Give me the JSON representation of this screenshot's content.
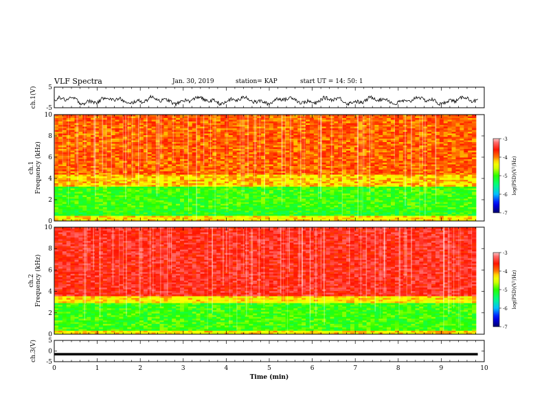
{
  "header": {
    "title": "VLF Spectra",
    "date": "Jan. 30, 2019",
    "station": "station= KAP",
    "start": "start  UT =   14: 50: 1"
  },
  "colors": {
    "spectrogram_scale": [
      "#000080",
      "#0000ff",
      "#00c8ff",
      "#00ff80",
      "#00ff00",
      "#c8ff00",
      "#ffff00",
      "#ff8000",
      "#ff0000",
      "#ff8080"
    ],
    "trace": "#000000"
  },
  "chart_data": [
    {
      "type": "line",
      "panel": "ch1-waveform",
      "ylabel": "ch.1(V)",
      "ylim": [
        -5,
        5
      ],
      "yticks": [
        "5",
        "-5"
      ],
      "x_range_min": [
        0,
        10
      ],
      "note": "noisy waveform trace centered near -1.5 V"
    },
    {
      "type": "heatmap",
      "panel": "ch1-spectrogram",
      "ylabel": "ch.1\nFrequency (kHz)",
      "ylabel_line1": "ch.1",
      "ylabel_line2": "Frequency (kHz)",
      "ylim": [
        0,
        10
      ],
      "yticks": [
        "0",
        "2",
        "4",
        "6",
        "8",
        "10"
      ],
      "bands": [
        {
          "from": 0,
          "to": 0.6,
          "level": -4.3
        },
        {
          "from": 0.6,
          "to": 1.2,
          "level": -5.1
        },
        {
          "from": 1.2,
          "to": 3.3,
          "level": -5.0
        },
        {
          "from": 3.3,
          "to": 4.5,
          "level": -4.2
        },
        {
          "from": 4.5,
          "to": 10,
          "level": -3.9
        }
      ],
      "colorbar": {
        "label": "log(PSD)(V²/Hz)",
        "ticks": [
          "-3",
          "-4",
          "-5",
          "-6",
          "-7"
        ],
        "range": [
          -7,
          -3
        ]
      }
    },
    {
      "type": "heatmap",
      "panel": "ch2-spectrogram",
      "ylabel_line1": "ch.2",
      "ylabel_line2": "Frequency (kHz)",
      "ylim": [
        0,
        10
      ],
      "yticks": [
        "0",
        "2",
        "4",
        "6",
        "8",
        "10"
      ],
      "bands": [
        {
          "from": 0,
          "to": 0.4,
          "level": -4.3
        },
        {
          "from": 0.4,
          "to": 3.0,
          "level": -5.0
        },
        {
          "from": 3.0,
          "to": 3.6,
          "level": -4.3
        },
        {
          "from": 3.6,
          "to": 10,
          "level": -3.5
        }
      ],
      "colorbar": {
        "label": "log(PSD)(V²/Hz)",
        "ticks": [
          "-3",
          "-4",
          "-5",
          "-6",
          "-7"
        ],
        "range": [
          -7,
          -3
        ]
      }
    },
    {
      "type": "line",
      "panel": "ch3-waveform",
      "ylabel": "ch.3(V)",
      "ylim": [
        -5,
        5
      ],
      "yticks": [
        "5",
        "0",
        "-5"
      ],
      "x": [
        0,
        9.85
      ],
      "y": [
        -1.5,
        -1.5
      ]
    }
  ],
  "xaxis": {
    "label": "Time (min)",
    "range": [
      0,
      10
    ],
    "ticks": [
      "0",
      "1",
      "2",
      "3",
      "4",
      "5",
      "6",
      "7",
      "8",
      "9",
      "10"
    ]
  }
}
